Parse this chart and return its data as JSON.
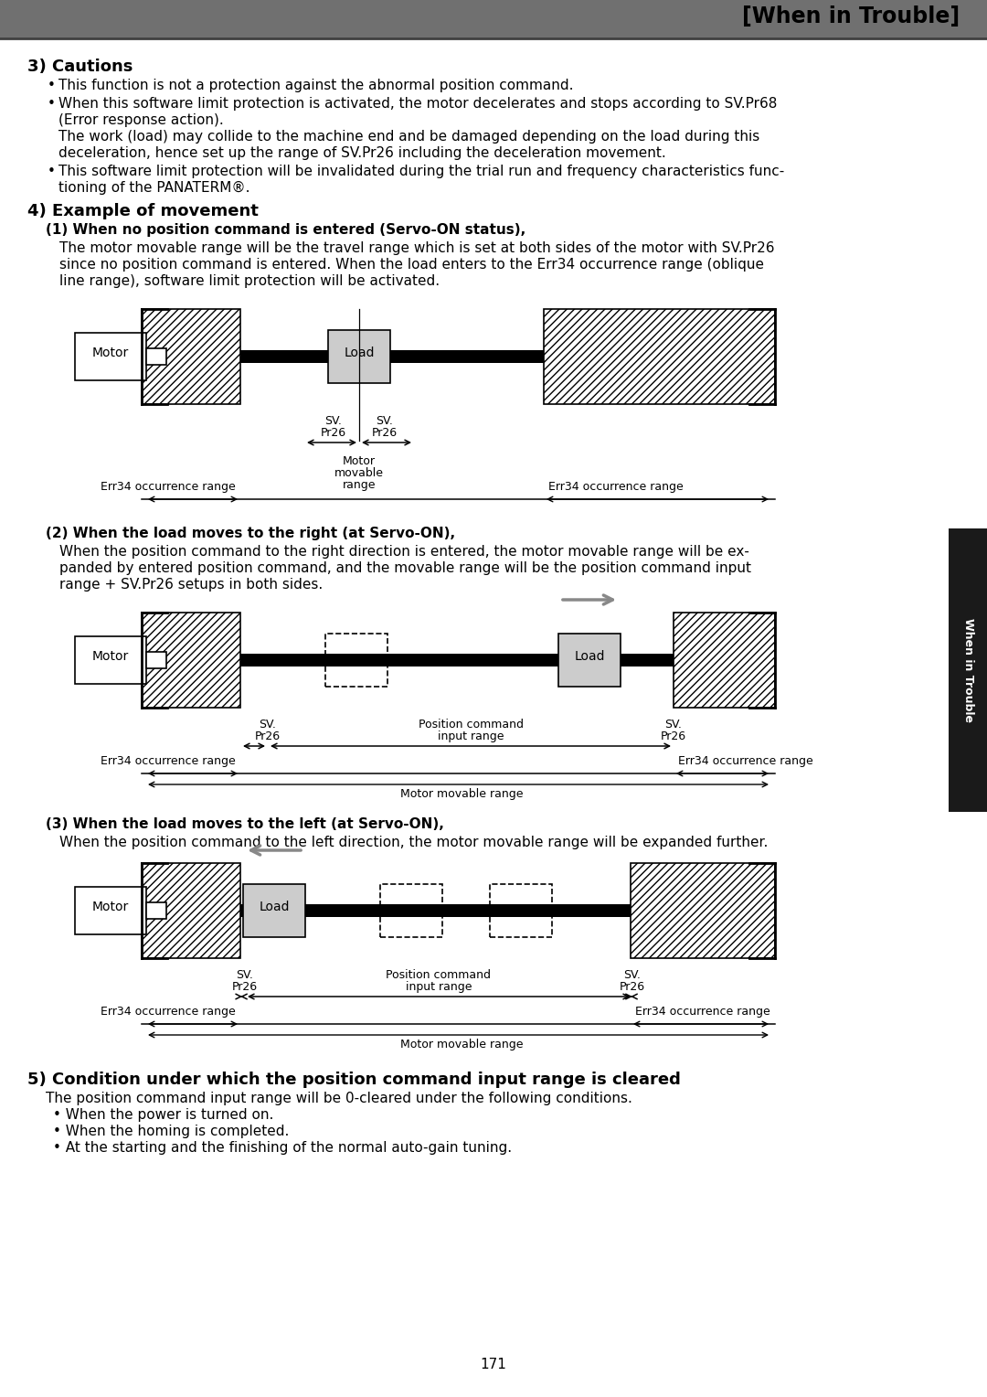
{
  "title": "[When in Trouble]",
  "header_bar_color": "#707070",
  "background_color": "#ffffff",
  "page_number": "171",
  "section3_title": "3) Cautions",
  "section4_title": "4) Example of movement",
  "sub1_title": "(1) When no position command is entered (Servo-ON status),",
  "sub1_body": "The motor movable range will be the travel range which is set at both sides of the motor with SV.Pr26\nsince no position command is entered. When the load enters to the Err34 occurrence range (oblique\nline range), software limit protection will be activated.",
  "sub2_title": "(2) When the load moves to the right (at Servo-ON),",
  "sub2_body": "When the position command to the right direction is entered, the motor movable range will be ex-\npanded by entered position command, and the movable range will be the position command input\nrange + SV.Pr26 setups in both sides.",
  "sub3_title": "(3) When the load moves to the left (at Servo-ON),",
  "sub3_body": "When the position command to the left direction, the motor movable range will be expanded further.",
  "section5_title": "5) Condition under which the position command input range is cleared",
  "section5_body": "The position command input range will be 0-cleared under the following conditions.",
  "section5_bullets": [
    "When the power is turned on.",
    "When the homing is completed.",
    "At the starting and the finishing of the normal auto-gain tuning."
  ],
  "sidebar_text": "When in Trouble",
  "sidebar_color": "#1a1a1a",
  "bullet1": "This function is not a protection against the abnormal position command.",
  "bullet2a": "When this software limit protection is activated, the motor decelerates and stops according to SV.Pr68",
  "bullet2b": "(Error response action).",
  "bullet2c": "The work (load) may collide to the machine end and be damaged depending on the load during this",
  "bullet2d": "deceleration, hence set up the range of SV.Pr26 including the deceleration movement.",
  "bullet3a": "This software limit protection will be invalidated during the trial run and frequency characteristics func-",
  "bullet3b": "tioning of the PANATERM®."
}
